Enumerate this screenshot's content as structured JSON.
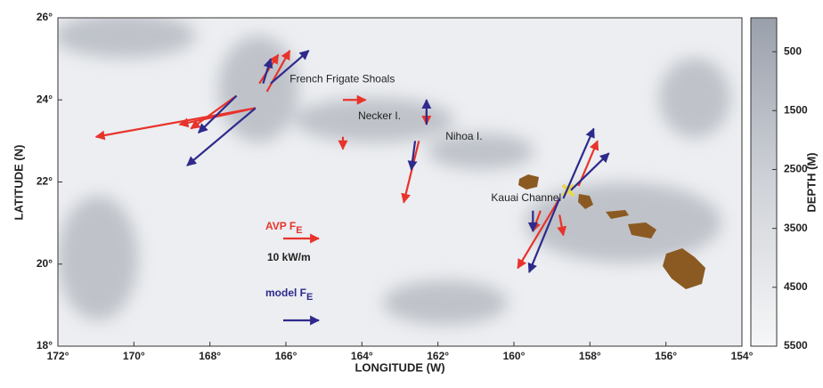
{
  "map": {
    "xlabel": "LONGITUDE (W)",
    "ylabel": "LATITUDE (N)",
    "xlim": [
      172,
      154
    ],
    "ylim": [
      18,
      26
    ],
    "xticks": [
      {
        "value": 172,
        "label": "172°"
      },
      {
        "value": 170,
        "label": "170°"
      },
      {
        "value": 168,
        "label": "168°"
      },
      {
        "value": 166,
        "label": "166°"
      },
      {
        "value": 164,
        "label": "164°"
      },
      {
        "value": 162,
        "label": "162°"
      },
      {
        "value": 160,
        "label": "160°"
      },
      {
        "value": 158,
        "label": "158°"
      },
      {
        "value": 156,
        "label": "156°"
      },
      {
        "value": 154,
        "label": "154°"
      }
    ],
    "yticks": [
      {
        "value": 18,
        "label": "18°"
      },
      {
        "value": 20,
        "label": "20°"
      },
      {
        "value": 22,
        "label": "22°"
      },
      {
        "value": 24,
        "label": "24°"
      },
      {
        "value": 26,
        "label": "26°"
      }
    ],
    "colorbar": {
      "label": "DEPTH (M)",
      "lim": [
        0,
        5500
      ],
      "ticks": [
        500,
        1500,
        2500,
        3500,
        4500,
        5500
      ]
    },
    "places": [
      {
        "label": "French Frigate Shoals",
        "lon": 165.9,
        "lat": 24.5
      },
      {
        "label": "Necker I.",
        "lon": 164.1,
        "lat": 23.6
      },
      {
        "label": "Nihoa I.",
        "lon": 161.8,
        "lat": 23.1
      },
      {
        "label": "Kauai Channel",
        "lon": 160.6,
        "lat": 21.6
      }
    ],
    "series": [
      {
        "name": "AVP F",
        "subscript": "E",
        "color": "#e8332b",
        "arrows": [
          [
            166.8,
            23.8,
            171.0,
            23.1
          ],
          [
            166.8,
            23.8,
            168.8,
            23.4
          ],
          [
            167.3,
            24.1,
            168.5,
            23.3
          ],
          [
            166.7,
            24.4,
            166.2,
            25.1
          ],
          [
            166.5,
            24.2,
            165.9,
            25.2
          ],
          [
            164.5,
            24.0,
            163.9,
            24.0
          ],
          [
            164.5,
            23.1,
            164.5,
            22.8
          ],
          [
            162.5,
            23.0,
            162.9,
            21.5
          ],
          [
            162.3,
            23.7,
            162.3,
            23.4
          ],
          [
            158.8,
            21.6,
            159.9,
            19.9
          ],
          [
            159.3,
            21.3,
            159.5,
            20.8
          ],
          [
            158.8,
            21.2,
            158.7,
            20.7
          ],
          [
            158.3,
            21.9,
            157.8,
            23.0
          ]
        ]
      },
      {
        "name": "model F",
        "subscript": "E",
        "color": "#2e2a8c",
        "arrows": [
          [
            166.8,
            23.8,
            168.6,
            22.4
          ],
          [
            167.3,
            24.1,
            168.3,
            23.2
          ],
          [
            166.6,
            24.4,
            166.4,
            25.0
          ],
          [
            166.4,
            24.4,
            165.4,
            25.2
          ],
          [
            162.3,
            23.4,
            162.3,
            24.0
          ],
          [
            162.6,
            23.0,
            162.7,
            22.3
          ],
          [
            158.8,
            21.6,
            159.6,
            19.8
          ],
          [
            158.7,
            21.6,
            157.9,
            23.3
          ],
          [
            158.5,
            21.8,
            157.5,
            22.7
          ],
          [
            159.5,
            21.3,
            159.5,
            20.8
          ]
        ]
      }
    ],
    "legend_scale": "10  kW/m"
  }
}
